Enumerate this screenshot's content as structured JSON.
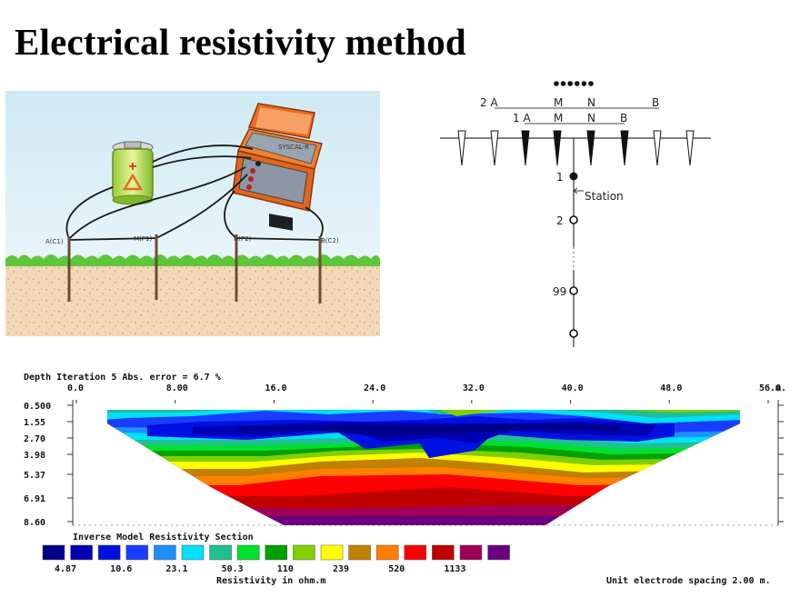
{
  "title": "Electrical resistivity method",
  "illustration": {
    "electrodes": [
      "A(C1)",
      "M(P1)",
      "N(P2)",
      "B(C2)"
    ],
    "meter_label": "SYSCAL-R"
  },
  "array_diagram": {
    "level2_labels": [
      "2 A",
      "M",
      "N",
      "B"
    ],
    "level1_labels": [
      "1 A",
      "M",
      "N",
      "B"
    ],
    "station_numbers": [
      "1",
      "2",
      "99"
    ],
    "station_label": "Station",
    "dot_count": 6
  },
  "section": {
    "header": "Depth  Iteration 5 Abs. error = 6.7 %",
    "x_ticks": [
      "0.0",
      "8.00",
      "16.0",
      "24.0",
      "32.0",
      "40.0",
      "48.0",
      "56.0"
    ],
    "x_unit": "m.",
    "depth_ticks": [
      "0.500",
      "1.55",
      "2.70",
      "3.98",
      "5.37",
      "6.91",
      "8.60"
    ],
    "section_title": "Inverse Model Resistivity Section",
    "scale_labels": [
      "4.87",
      "10.6",
      "23.1",
      "50.3",
      "110",
      "239",
      "520",
      "1133"
    ],
    "scale_unit_label": "Resistivity in ohm.m",
    "spacing_label": "Unit electrode spacing 2.00 m.",
    "palette": [
      "#00008b",
      "#0000b4",
      "#0010e0",
      "#1a3cff",
      "#1e90ff",
      "#00e0ff",
      "#20c090",
      "#00e030",
      "#00a000",
      "#80d000",
      "#ffff00",
      "#c08000",
      "#ff8000",
      "#ff0000",
      "#c00000",
      "#a0005a",
      "#6a0080"
    ]
  }
}
